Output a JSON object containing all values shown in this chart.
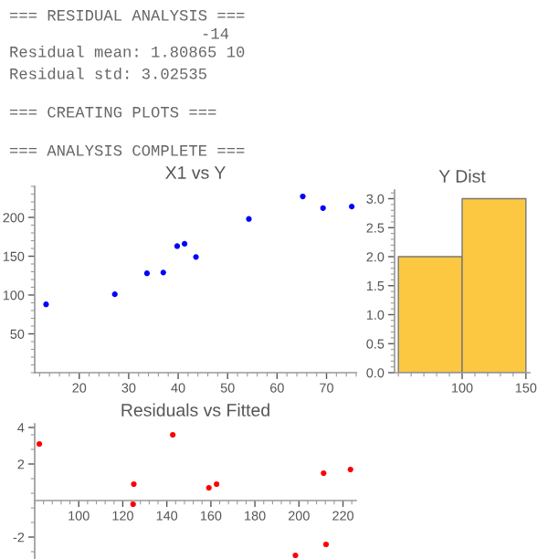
{
  "chart_data": [
    {
      "type": "other",
      "annotations": [
        "=== RESIDUAL ANALYSIS ===",
        "-14",
        "Residual mean: 1.80865 10",
        "Residual std: 3.02535",
        "=== CREATING PLOTS ===",
        "=== ANALYSIS COMPLETE ==="
      ]
    },
    {
      "type": "scatter",
      "title": "X1 vs Y",
      "x": [
        13.3,
        27.2,
        33.7,
        37.0,
        39.8,
        41.3,
        43.6,
        54.3,
        65.2,
        69.3,
        75.1
      ],
      "values": [
        88,
        101,
        128,
        129,
        163,
        166,
        149,
        198,
        227,
        212,
        214
      ],
      "color": "#0000ff",
      "xlim": [
        11,
        76
      ],
      "ylim": [
        0,
        240
      ],
      "xticks": [
        20,
        30,
        40,
        50,
        60,
        70
      ],
      "yticks": [
        50,
        100,
        150,
        200
      ],
      "marker": "circle",
      "grid": false
    },
    {
      "type": "histogram",
      "title": "Y Dist",
      "bins": [
        50,
        100,
        150
      ],
      "values": [
        2,
        3
      ],
      "color": "#fdc841",
      "xlim": [
        47,
        153
      ],
      "ylim": [
        0,
        3.15
      ],
      "xticks": [
        100,
        150
      ],
      "yticks": [
        {
          "value": 0,
          "label": "0.0"
        },
        {
          "value": 0.5,
          "label": "0.5"
        },
        {
          "value": 1,
          "label": "1.0"
        },
        {
          "value": 1.5,
          "label": "1.5"
        },
        {
          "value": 2,
          "label": "2.0"
        },
        {
          "value": 2.5,
          "label": "2.5"
        },
        {
          "value": 3,
          "label": "3.0"
        }
      ],
      "grid": false
    },
    {
      "type": "scatter",
      "title": "Residuals vs Fitted",
      "x": [
        82.1,
        125.0,
        124.7,
        142.7,
        159.1,
        162.6,
        198.4,
        211.2,
        212.3,
        223.4
      ],
      "values": [
        3.1,
        0.9,
        -0.2,
        3.6,
        0.7,
        0.9,
        -3.0,
        1.5,
        -2.4,
        1.7
      ],
      "color": "#ff0000",
      "xlim": [
        80,
        226
      ],
      "ylim": [
        -3.2,
        4.2
      ],
      "xticks": [
        100,
        120,
        140,
        160,
        180,
        200,
        220
      ],
      "yticks": [
        -2,
        2,
        4
      ],
      "marker": "circle",
      "grid": false
    }
  ]
}
